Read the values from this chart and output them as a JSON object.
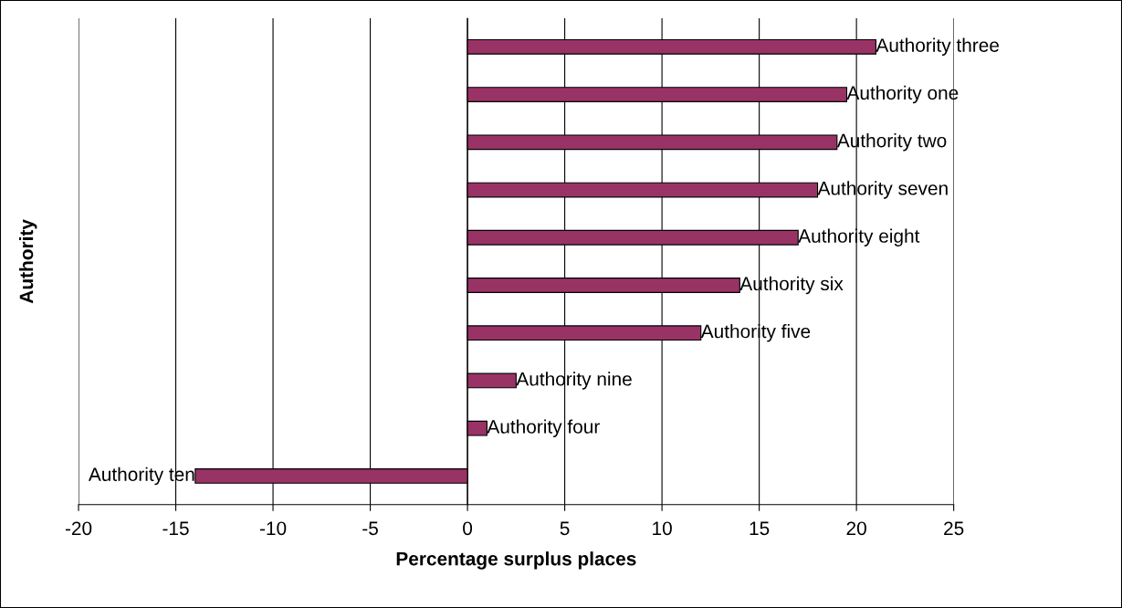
{
  "chart_data": {
    "type": "bar",
    "orientation": "horizontal",
    "xlabel": "Percentage surplus places",
    "ylabel": "Authority",
    "categories": [
      "Authority three",
      "Authority one",
      "Authority two",
      "Authority seven",
      "Authority eight",
      "Authority six",
      "Authority five",
      "Authority nine",
      "Authority four",
      "Authority ten"
    ],
    "values": [
      21.0,
      19.5,
      19.0,
      18.0,
      17.0,
      14.0,
      12.0,
      2.5,
      1.0,
      -14.0
    ],
    "color": "#993366",
    "xlim": [
      -20,
      25
    ],
    "xticks": [
      -20,
      -15,
      -10,
      -5,
      0,
      5,
      10,
      15,
      20,
      25
    ],
    "grid": "x",
    "legend": false
  }
}
